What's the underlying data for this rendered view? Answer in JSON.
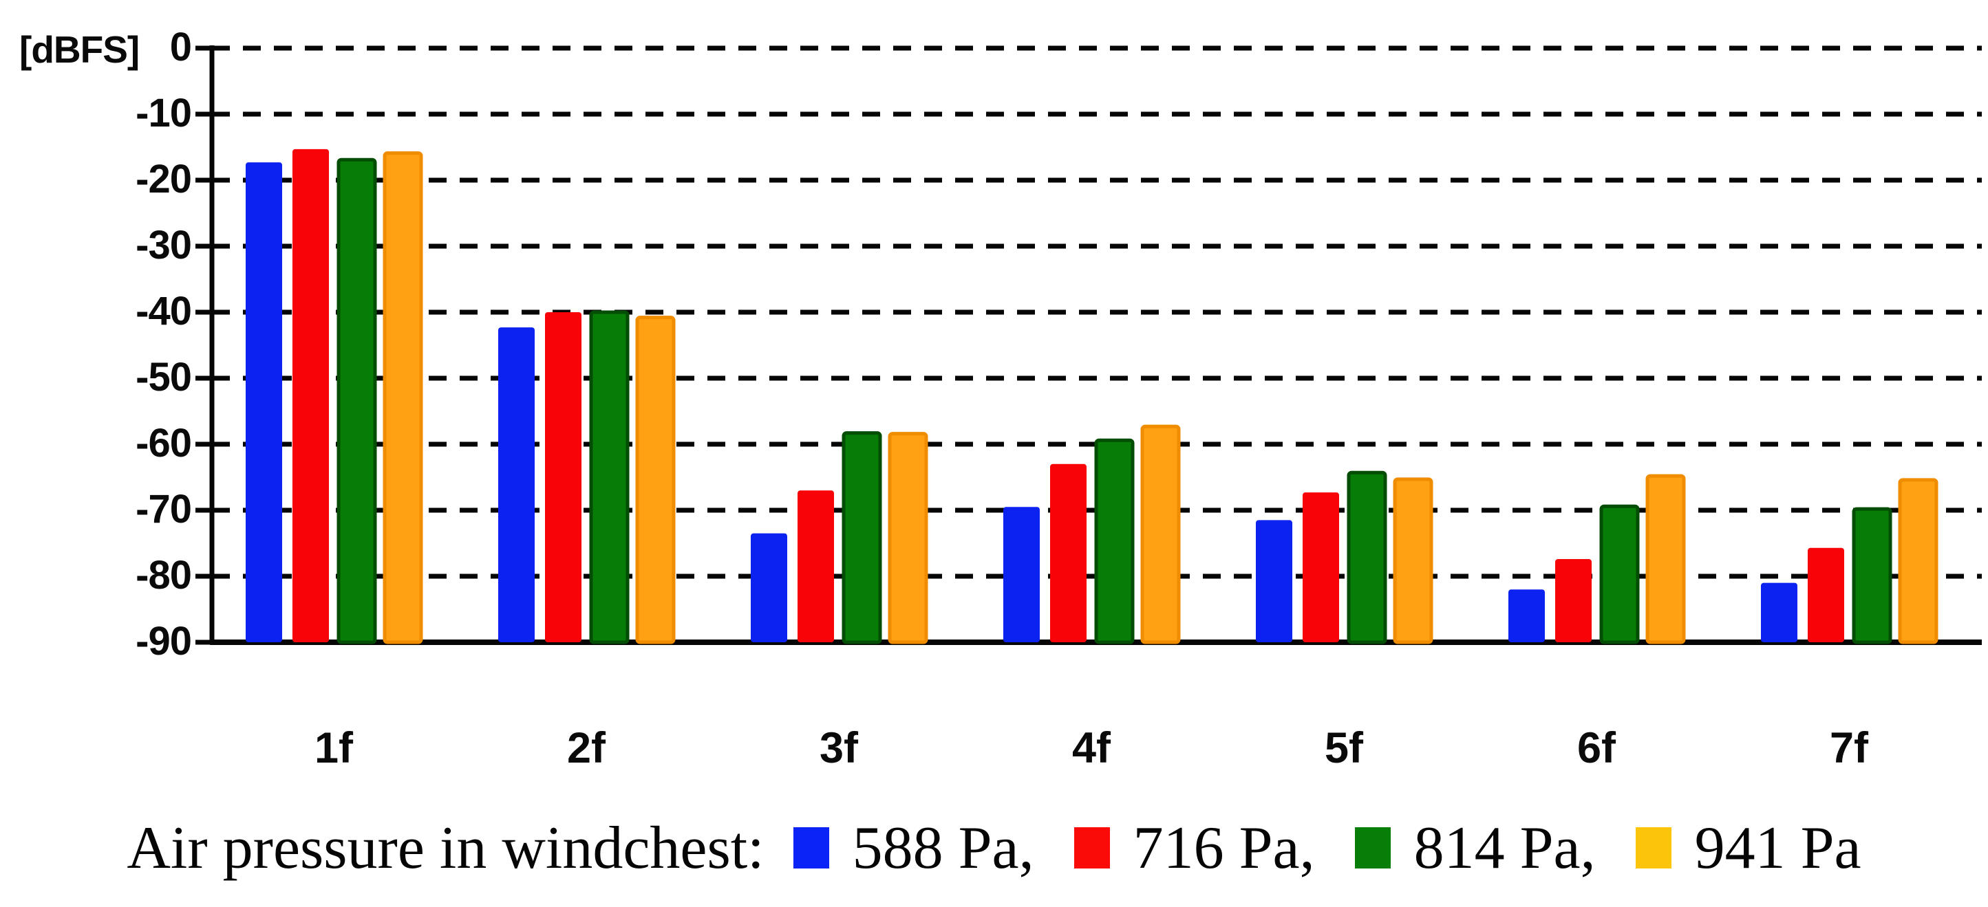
{
  "chart_data": {
    "type": "bar",
    "title": "",
    "unit_label": "[dBFS]",
    "xlabel": "",
    "ylabel": "[dBFS]",
    "categories": [
      "1f",
      "2f",
      "3f",
      "4f",
      "5f",
      "6f",
      "7f"
    ],
    "series": [
      {
        "name": "588 Pa",
        "color": "#0b22f0",
        "border_color": "#0b22f0",
        "values": [
          -17.3,
          -42.3,
          -73.5,
          -69.5,
          -71.5,
          -82.0,
          -81.0
        ]
      },
      {
        "name": "716 Pa",
        "color": "#f80408",
        "border_color": "#f80408",
        "values": [
          -15.3,
          -40.0,
          -67.0,
          -63.0,
          -67.3,
          -77.4,
          -75.7
        ]
      },
      {
        "name": "814 Pa",
        "color": "#077d07",
        "border_color": "#044d04",
        "values": [
          -16.9,
          -40.0,
          -58.3,
          -59.4,
          -64.3,
          -69.4,
          -69.8
        ]
      },
      {
        "name": "941 Pa",
        "color": "#ffa113",
        "border_color": "#f08c00",
        "values": [
          -15.9,
          -40.8,
          -58.4,
          -57.3,
          -65.3,
          -64.8,
          -65.4
        ]
      }
    ],
    "y_ticks": [
      0,
      -10,
      -20,
      -30,
      -40,
      -50,
      -60,
      -70,
      -80,
      -90
    ],
    "ylim": [
      -90,
      0
    ],
    "grid": "dashed-horizontal",
    "legend": {
      "position": "bottom",
      "prefix": "Air pressure in windchest:",
      "items": [
        {
          "label": "588 Pa,",
          "color": "#0b23f6"
        },
        {
          "label": "716 Pa,",
          "color": "#fb0b07"
        },
        {
          "label": "814 Pa,",
          "color": "#077e07"
        },
        {
          "label": "941 Pa",
          "color": "#fcc40a"
        }
      ]
    }
  }
}
